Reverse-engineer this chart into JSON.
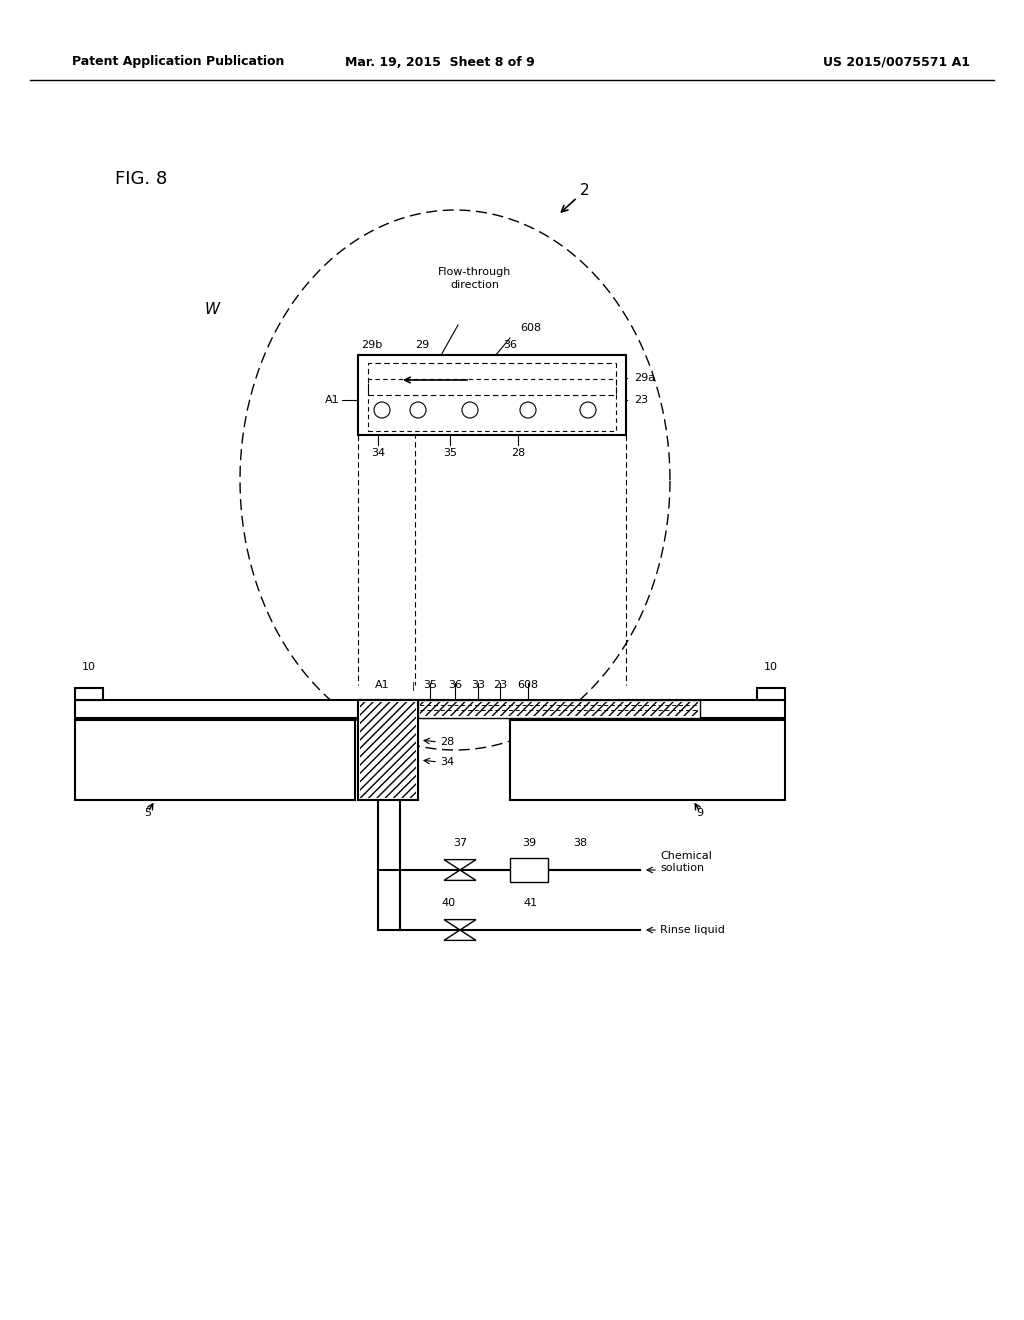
{
  "bg_color": "#ffffff",
  "header_left": "Patent Application Publication",
  "header_mid": "Mar. 19, 2015  Sheet 8 of 9",
  "header_right": "US 2015/0075571 A1",
  "fig_label": "FIG. 8"
}
